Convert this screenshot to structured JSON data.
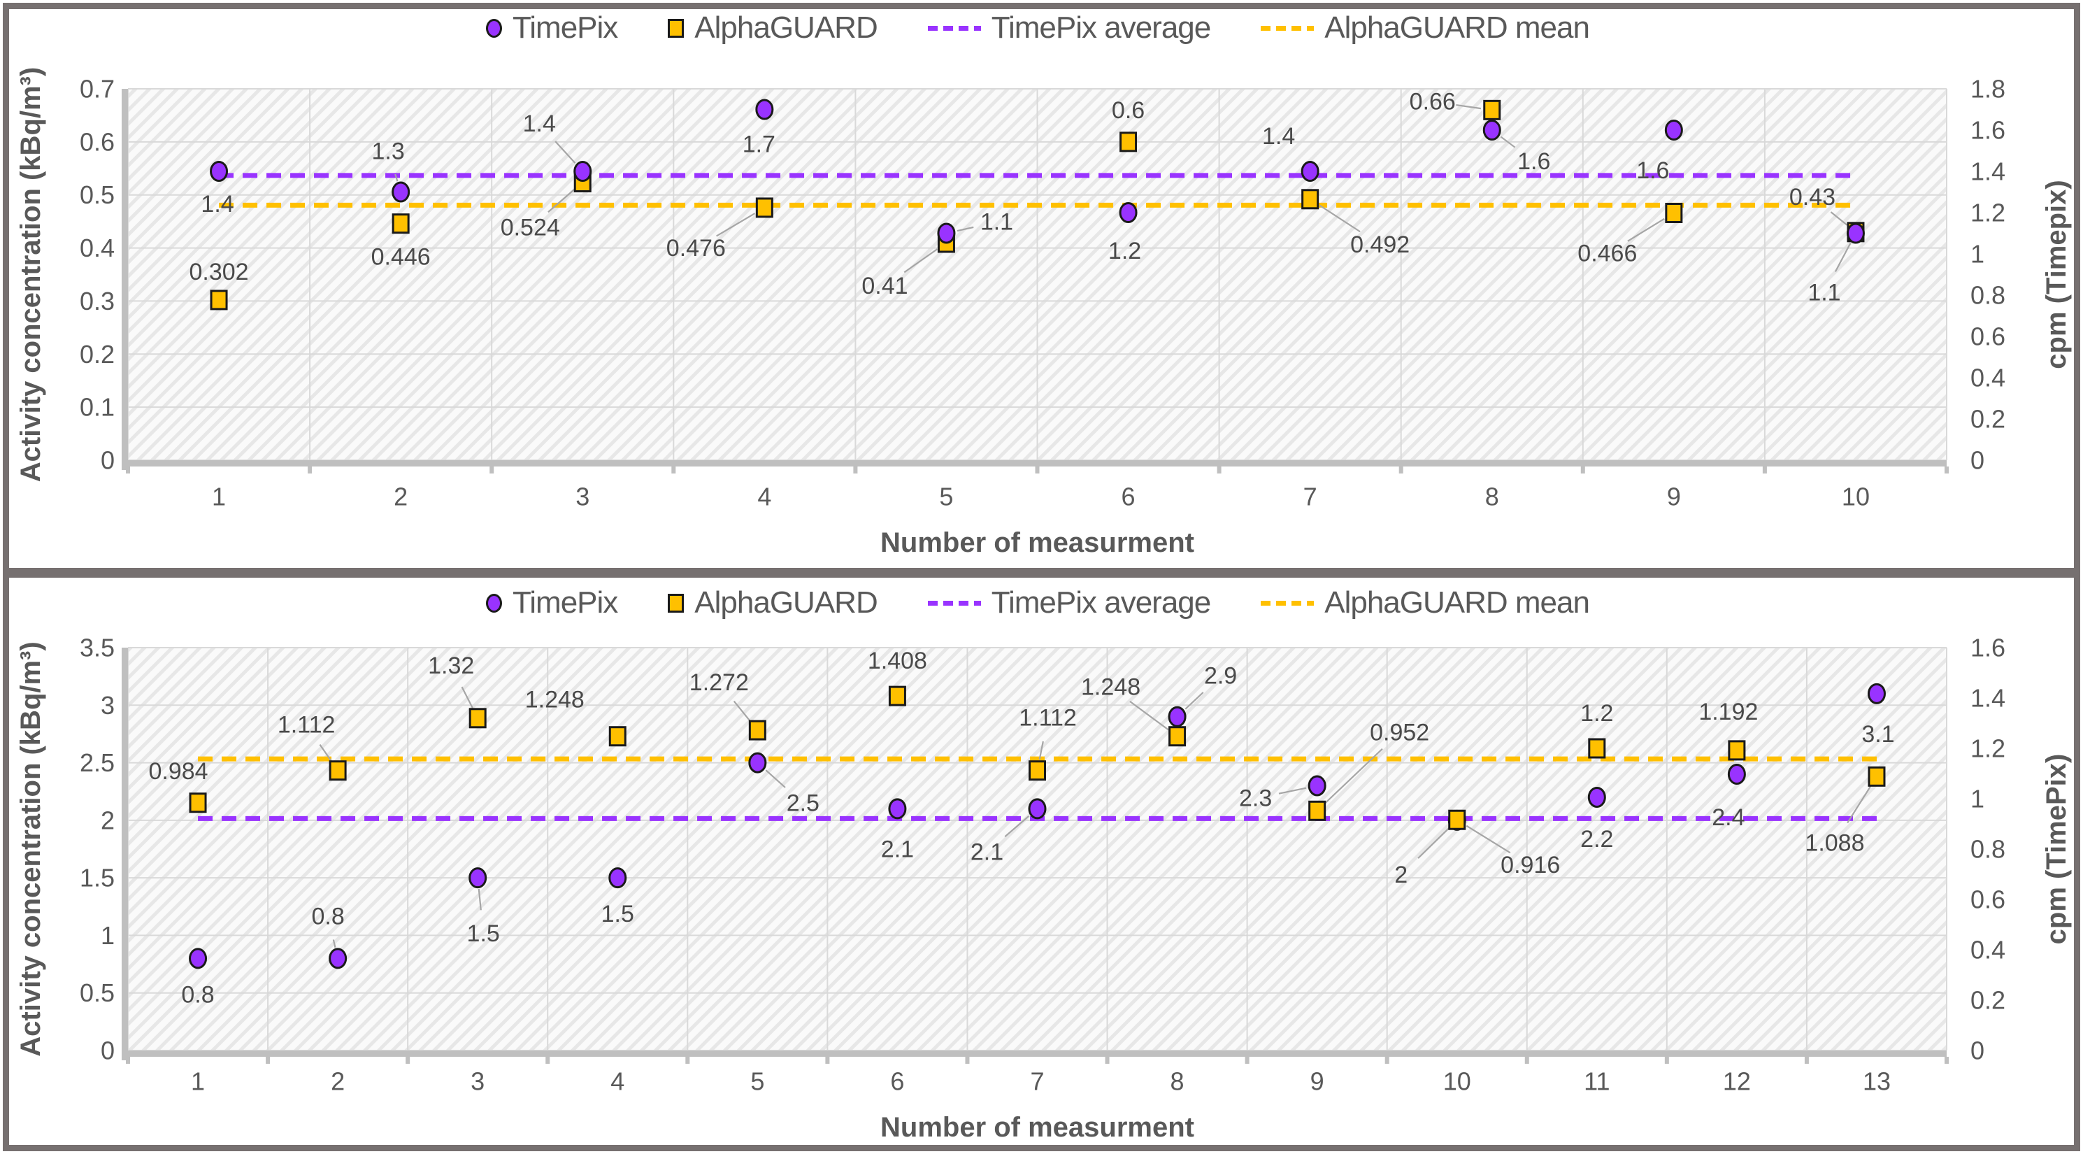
{
  "colors": {
    "timepix": "#9933FF",
    "alphaguard": "#FFC000",
    "marker_outline": "#1a1a1a",
    "tick_text": "#595959",
    "label_text": "#4a4a4a",
    "grid": "#D9D9D9",
    "axis_bar": "#BFBFBF",
    "leader": "#A6A6A6",
    "frame": "#767070",
    "hatch_bg": "#FAFAFA",
    "hatch_line": "#E7E7E7"
  },
  "chart_data": [
    {
      "type": "scatter",
      "position": "top",
      "x_title": "Number of measurment",
      "y_left_title": "Activity concentration (kBq/m³)",
      "y_right_title": "cpm (Timepix)",
      "x_categories": [
        "1",
        "2",
        "3",
        "4",
        "5",
        "6",
        "7",
        "8",
        "9",
        "10"
      ],
      "y_left_ticks": [
        "0",
        "0.1",
        "0.2",
        "0.3",
        "0.4",
        "0.5",
        "0.6",
        "0.7"
      ],
      "y_right_ticks": [
        "0",
        "0.2",
        "0.4",
        "0.6",
        "0.8",
        "1",
        "1.2",
        "1.4",
        "1.6",
        "1.8"
      ],
      "y_left_range": [
        0,
        0.7
      ],
      "y_right_range": [
        0,
        1.8
      ],
      "grid": true,
      "legend_position": "top",
      "legend": [
        {
          "key": "timepix",
          "label": "TimePix"
        },
        {
          "key": "alphaguard",
          "label": "AlphaGUARD"
        },
        {
          "key": "timepix_avg",
          "label": "TimePix average"
        },
        {
          "key": "alphaguard_mean",
          "label": "AlphaGUARD mean"
        }
      ],
      "series": [
        {
          "name": "TimePix",
          "key": "timepix",
          "marker": "circle",
          "axis": "right",
          "points": [
            {
              "x": 1,
              "v": 1.4,
              "label": "1.4",
              "dx": -2,
              "dy": 47,
              "leader": false
            },
            {
              "x": 2,
              "v": 1.3,
              "label": "1.3",
              "dx": -18,
              "dy": -58,
              "leader": true
            },
            {
              "x": 3,
              "v": 1.4,
              "label": "1.4",
              "dx": -62,
              "dy": -68,
              "leader": true
            },
            {
              "x": 4,
              "v": 1.7,
              "label": "1.7",
              "dx": -8,
              "dy": 50,
              "leader": false
            },
            {
              "x": 5,
              "v": 1.1,
              "label": "1.1",
              "dx": 72,
              "dy": -16,
              "leader": true
            },
            {
              "x": 6,
              "v": 1.2,
              "label": "1.2",
              "dx": -5,
              "dy": 55,
              "leader": false
            },
            {
              "x": 7,
              "v": 1.4,
              "label": "1.4",
              "dx": -45,
              "dy": -50,
              "leader": false
            },
            {
              "x": 8,
              "v": 1.6,
              "label": "1.6",
              "dx": 60,
              "dy": 45,
              "leader": true
            },
            {
              "x": 9,
              "v": 1.6,
              "label": "1.6",
              "dx": -30,
              "dy": 58,
              "leader": false
            },
            {
              "x": 10,
              "v": 1.1,
              "label": "1.1",
              "dx": -45,
              "dy": 85,
              "leader": true
            }
          ]
        },
        {
          "name": "AlphaGUARD",
          "key": "alphaguard",
          "marker": "square",
          "axis": "left",
          "points": [
            {
              "x": 1,
              "v": 0.302,
              "label": "0.302",
              "dx": 0,
              "dy": -40,
              "leader": false
            },
            {
              "x": 2,
              "v": 0.446,
              "label": "0.446",
              "dx": 0,
              "dy": 48,
              "leader": false
            },
            {
              "x": 3,
              "v": 0.524,
              "label": "0.524",
              "dx": -75,
              "dy": 65,
              "leader": true
            },
            {
              "x": 4,
              "v": 0.476,
              "label": "0.476",
              "dx": -98,
              "dy": 58,
              "leader": true
            },
            {
              "x": 5,
              "v": 0.41,
              "label": "0.41",
              "dx": -88,
              "dy": 62,
              "leader": true
            },
            {
              "x": 6,
              "v": 0.6,
              "label": "0.6",
              "dx": 0,
              "dy": -45,
              "leader": false
            },
            {
              "x": 7,
              "v": 0.492,
              "label": "0.492",
              "dx": 100,
              "dy": 65,
              "leader": true
            },
            {
              "x": 8,
              "v": 0.66,
              "label": "0.66",
              "dx": -85,
              "dy": -12,
              "leader": true
            },
            {
              "x": 9,
              "v": 0.466,
              "label": "0.466",
              "dx": -95,
              "dy": 58,
              "leader": true
            },
            {
              "x": 10,
              "v": 0.43,
              "label": "0.43",
              "dx": -62,
              "dy": -50,
              "leader": true
            }
          ]
        }
      ],
      "mean_lines": [
        {
          "label": "TimePix average",
          "series": "TimePix",
          "key": "timepix"
        },
        {
          "label": "AlphaGUARD mean",
          "series": "AlphaGUARD",
          "key": "alphaguard"
        }
      ]
    },
    {
      "type": "scatter",
      "position": "bottom",
      "x_title": "Number of measurment",
      "y_left_title": "Activity concentration (kBq/m³)",
      "y_right_title": "cpm (TimePix)",
      "x_categories": [
        "1",
        "2",
        "3",
        "4",
        "5",
        "6",
        "7",
        "8",
        "9",
        "10",
        "11",
        "12",
        "13"
      ],
      "y_left_ticks": [
        "0",
        "0.5",
        "1",
        "1.5",
        "2",
        "2.5",
        "3",
        "3.5"
      ],
      "y_right_ticks": [
        "0",
        "0.2",
        "0.4",
        "0.6",
        "0.8",
        "1",
        "1.2",
        "1.4",
        "1.6"
      ],
      "y_left_range": [
        0,
        3.5
      ],
      "y_right_range": [
        0,
        1.6
      ],
      "grid": true,
      "legend_position": "top",
      "legend": [
        {
          "key": "timepix",
          "label": "TimePix"
        },
        {
          "key": "alphaguard",
          "label": "AlphaGUARD"
        },
        {
          "key": "timepix_avg",
          "label": "TimePix average"
        },
        {
          "key": "alphaguard_mean",
          "label": "AlphaGUARD mean"
        }
      ],
      "series": [
        {
          "name": "TimePix",
          "key": "timepix",
          "marker": "circle",
          "axis": "left",
          "points": [
            {
              "x": 1,
              "v": 0.8,
              "label": "0.8",
              "dx": 0,
              "dy": 52,
              "leader": false
            },
            {
              "x": 2,
              "v": 0.8,
              "label": "0.8",
              "dx": -14,
              "dy": -60,
              "leader": true
            },
            {
              "x": 3,
              "v": 1.5,
              "label": "1.5",
              "dx": 8,
              "dy": 80,
              "leader": true
            },
            {
              "x": 4,
              "v": 1.5,
              "label": "1.5",
              "dx": 0,
              "dy": 52,
              "leader": false
            },
            {
              "x": 5,
              "v": 2.5,
              "label": "2.5",
              "dx": 65,
              "dy": 58,
              "leader": true
            },
            {
              "x": 6,
              "v": 2.1,
              "label": "2.1",
              "dx": 0,
              "dy": 58,
              "leader": false
            },
            {
              "x": 7,
              "v": 2.1,
              "label": "2.1",
              "dx": -72,
              "dy": 62,
              "leader": true
            },
            {
              "x": 8,
              "v": 2.9,
              "label": "2.9",
              "dx": 62,
              "dy": -58,
              "leader": true
            },
            {
              "x": 9,
              "v": 2.3,
              "label": "2.3",
              "dx": -88,
              "dy": 18,
              "leader": true
            },
            {
              "x": 10,
              "v": 2,
              "label": "2",
              "dx": -80,
              "dy": 78,
              "leader": true
            },
            {
              "x": 11,
              "v": 2.2,
              "label": "2.2",
              "dx": 0,
              "dy": 60,
              "leader": false
            },
            {
              "x": 12,
              "v": 2.4,
              "label": "2.4",
              "dx": -12,
              "dy": 62,
              "leader": false
            },
            {
              "x": 13,
              "v": 3.1,
              "label": "3.1",
              "dx": 2,
              "dy": 58,
              "leader": false
            }
          ]
        },
        {
          "name": "AlphaGUARD",
          "key": "alphaguard",
          "marker": "square",
          "axis": "right",
          "points": [
            {
              "x": 1,
              "v": 0.984,
              "label": "0.984",
              "dx": -28,
              "dy": -45,
              "leader": false
            },
            {
              "x": 2,
              "v": 1.112,
              "label": "1.112",
              "dx": -45,
              "dy": -65,
              "leader": true
            },
            {
              "x": 3,
              "v": 1.32,
              "label": "1.32",
              "dx": -38,
              "dy": -75,
              "leader": true
            },
            {
              "x": 4,
              "v": 1.248,
              "label": "1.248",
              "dx": -90,
              "dy": -52,
              "leader": false
            },
            {
              "x": 5,
              "v": 1.272,
              "label": "1.272",
              "dx": -55,
              "dy": -68,
              "leader": true
            },
            {
              "x": 6,
              "v": 1.408,
              "label": "1.408",
              "dx": 0,
              "dy": -50,
              "leader": false
            },
            {
              "x": 7,
              "v": 1.112,
              "label": "1.112",
              "dx": 15,
              "dy": -75,
              "leader": true
            },
            {
              "x": 8,
              "v": 1.248,
              "label": "1.248",
              "dx": -95,
              "dy": -70,
              "leader": true
            },
            {
              "x": 9,
              "v": 0.952,
              "label": "0.952",
              "dx": 118,
              "dy": -112,
              "leader": true
            },
            {
              "x": 10,
              "v": 0.916,
              "label": "0.916",
              "dx": 105,
              "dy": 65,
              "leader": true
            },
            {
              "x": 11,
              "v": 1.2,
              "label": "1.2",
              "dx": 0,
              "dy": -50,
              "leader": false
            },
            {
              "x": 12,
              "v": 1.192,
              "label": "1.192",
              "dx": -12,
              "dy": -55,
              "leader": false
            },
            {
              "x": 13,
              "v": 1.088,
              "label": "1.088",
              "dx": -60,
              "dy": 95,
              "leader": true
            }
          ]
        }
      ],
      "mean_lines": [
        {
          "label": "TimePix average",
          "series": "TimePix",
          "key": "timepix"
        },
        {
          "label": "AlphaGUARD mean",
          "series": "AlphaGUARD",
          "key": "alphaguard"
        }
      ]
    }
  ]
}
